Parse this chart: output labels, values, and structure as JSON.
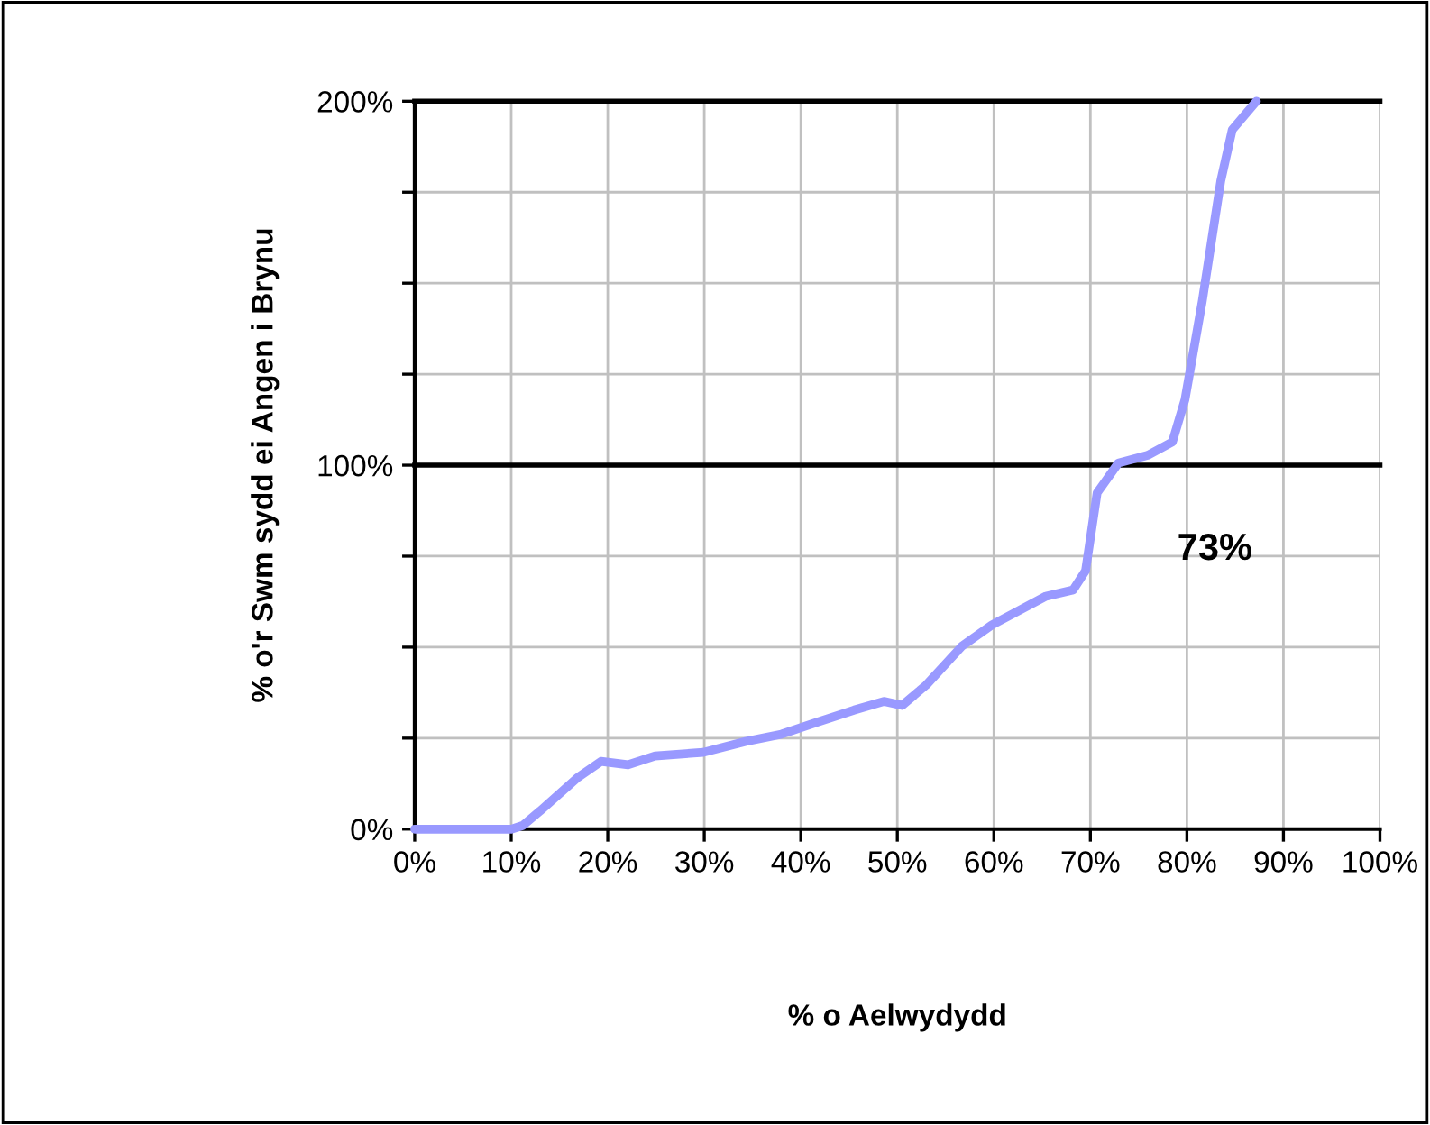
{
  "chart_data": {
    "type": "line",
    "xlabel": "% o Aelwydydd",
    "ylabel": "% o'r Swm sydd ei Angen i Brynu",
    "annotations": [
      "73%"
    ],
    "series": [
      {
        "color": "#9999ff",
        "x": [
          0,
          5,
          8,
          10,
          11.2,
          13,
          16.8,
          19.3,
          22.1,
          24.9,
          29.9,
          34.3,
          38,
          41.7,
          45.5,
          48.6,
          50.5,
          53,
          56.7,
          59.8,
          65.4,
          68.2,
          69.5,
          70.7,
          72.9,
          76,
          78.5,
          79.8,
          81.6,
          83.5,
          84.7,
          87.2
        ],
        "values": [
          0,
          0,
          0,
          0,
          1,
          5,
          14,
          18.6,
          17.7,
          20.1,
          21.1,
          24.1,
          26.1,
          29.4,
          32.7,
          35.1,
          34,
          39.6,
          50.3,
          56.1,
          64,
          65.7,
          71,
          92.4,
          100.6,
          102.8,
          106.4,
          118,
          145.2,
          178,
          192.2,
          200
        ]
      }
    ],
    "xlim": [
      0,
      100
    ],
    "ylim": [
      0,
      200
    ],
    "xticks": [
      {
        "value": 0,
        "label": "0%"
      },
      {
        "value": 10,
        "label": "10%"
      },
      {
        "value": 20,
        "label": "20%"
      },
      {
        "value": 30,
        "label": "30%"
      },
      {
        "value": 40,
        "label": "40%"
      },
      {
        "value": 50,
        "label": "50%"
      },
      {
        "value": 60,
        "label": "60%"
      },
      {
        "value": 70,
        "label": "70%"
      },
      {
        "value": 80,
        "label": "80%"
      },
      {
        "value": 90,
        "label": "90%"
      },
      {
        "value": 100,
        "label": "100%"
      }
    ],
    "yticks": [
      {
        "value": 0,
        "label": "0%"
      },
      {
        "value": 25,
        "label": null
      },
      {
        "value": 50,
        "label": null
      },
      {
        "value": 75,
        "label": null
      },
      {
        "value": 100,
        "label": "100%"
      },
      {
        "value": 125,
        "label": null
      },
      {
        "value": 150,
        "label": null
      },
      {
        "value": 175,
        "label": null
      },
      {
        "value": 200,
        "label": "200%"
      }
    ],
    "ref_lines": [
      {
        "axis": "y",
        "value": 100,
        "color": "#000000"
      },
      {
        "axis": "y",
        "value": 200,
        "color": "#000000"
      }
    ],
    "grid": true,
    "marker": "none",
    "line_style": "solid",
    "legend": false
  }
}
